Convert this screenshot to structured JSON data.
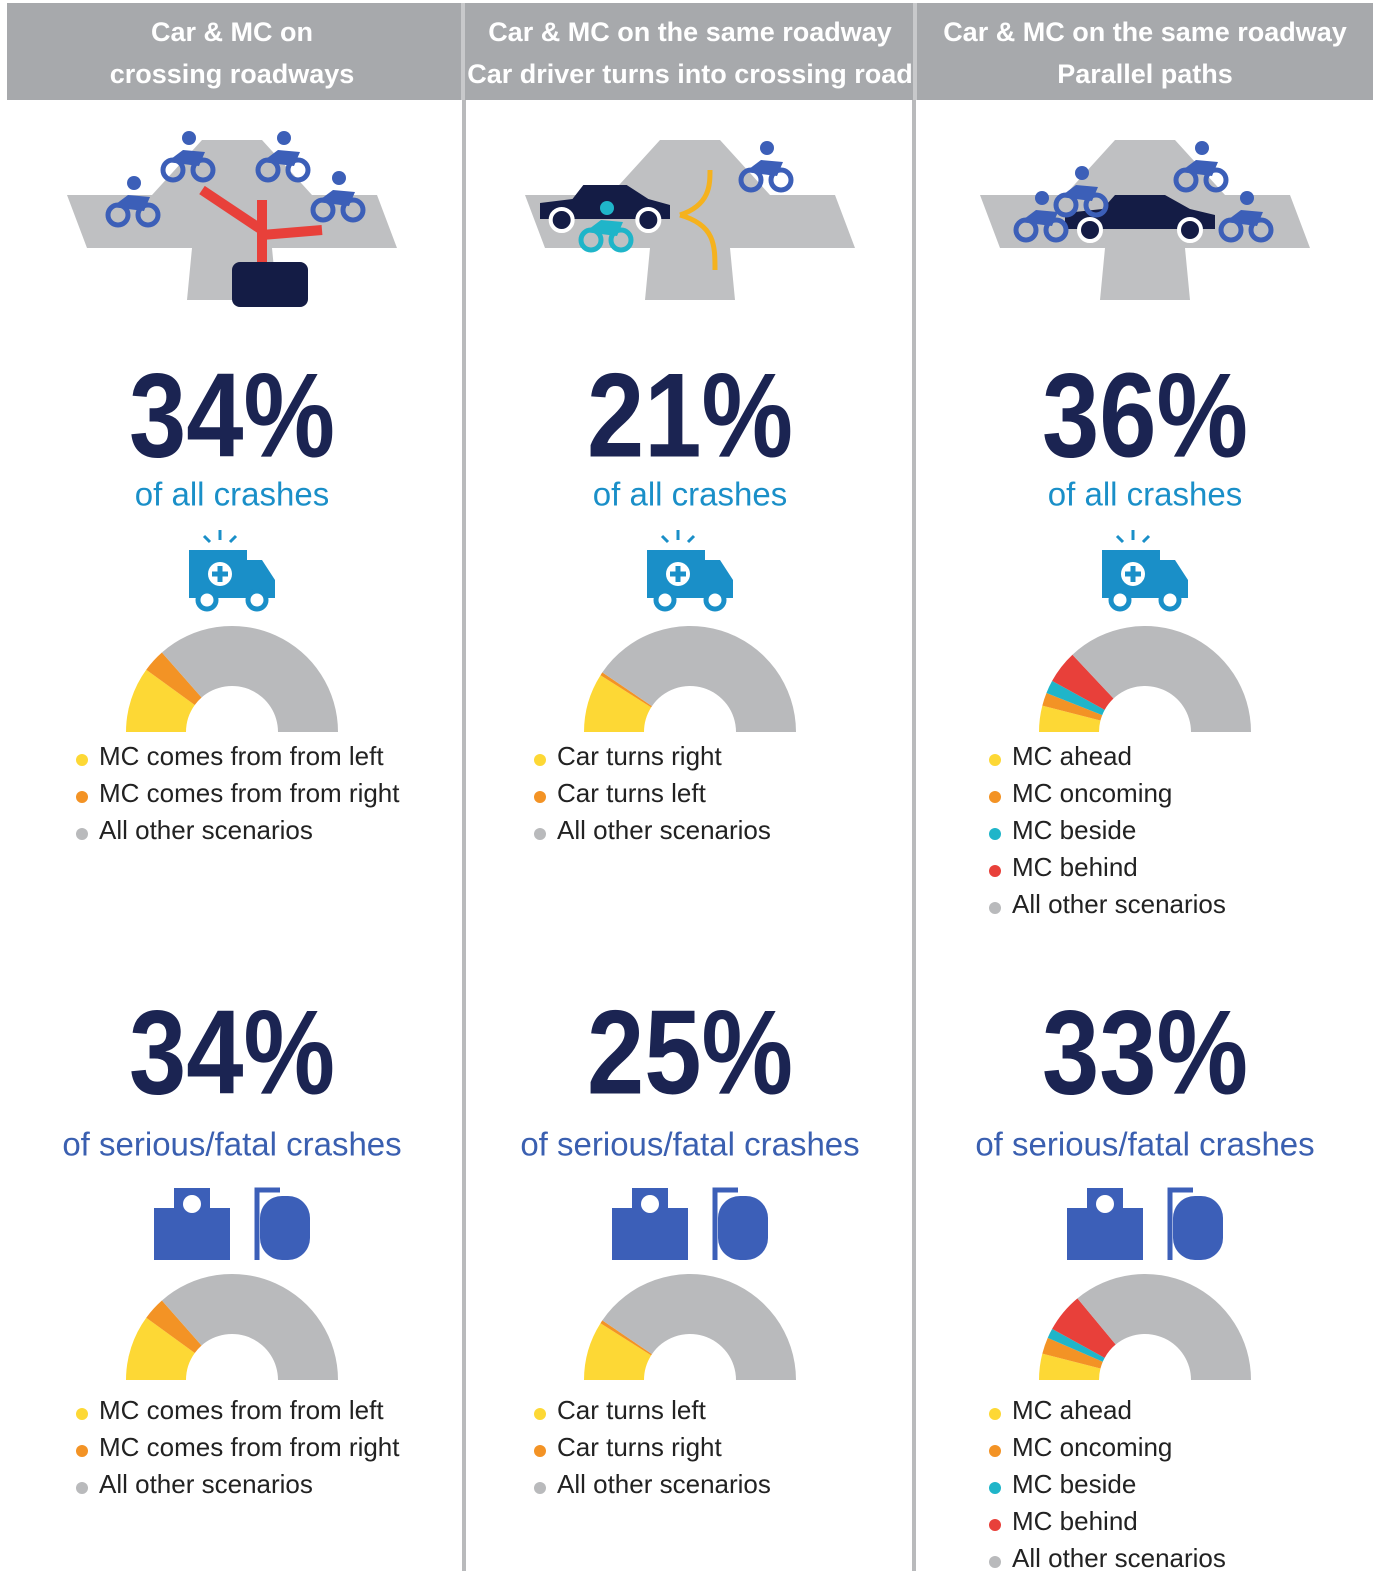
{
  "headers": [
    [
      "Car & MC on",
      "crossing roadways"
    ],
    [
      "Car & MC on the same roadway",
      "Car driver turns into crossing road"
    ],
    [
      "Car & MC on the same roadway",
      "Parallel paths"
    ]
  ],
  "chart_data": [
    {
      "type": "pie",
      "headline": "34%",
      "caption": "of all crashes",
      "categories": [
        "MC comes from from left",
        "MC comes from from right",
        "All other scenarios"
      ],
      "values": [
        20,
        7,
        73
      ],
      "colors": [
        "#fdd835",
        "#f39325",
        "#b9babc"
      ]
    },
    {
      "type": "pie",
      "headline": "21%",
      "caption": "of all crashes",
      "categories": [
        "Car turns right",
        "Car turns left",
        "All other scenarios"
      ],
      "values": [
        18,
        1,
        81
      ],
      "colors": [
        "#fdd835",
        "#f39325",
        "#b9babc"
      ]
    },
    {
      "type": "pie",
      "headline": "36%",
      "caption": "of all crashes",
      "categories": [
        "MC ahead",
        "MC oncoming",
        "MC beside",
        "MC behind",
        "All other scenarios"
      ],
      "values": [
        8,
        4,
        4,
        10,
        74
      ],
      "colors": [
        "#fdd835",
        "#f39325",
        "#1fb5c9",
        "#e8403a",
        "#b9babc"
      ]
    },
    {
      "type": "pie",
      "headline": "34%",
      "caption": "of serious/fatal crashes",
      "categories": [
        "MC comes from from left",
        "MC comes from from right",
        "All other scenarios"
      ],
      "values": [
        20,
        7,
        73
      ],
      "colors": [
        "#fdd835",
        "#f39325",
        "#b9babc"
      ]
    },
    {
      "type": "pie",
      "headline": "25%",
      "caption": "of serious/fatal crashes",
      "categories": [
        "Car turns left",
        "Car turns right",
        "All other scenarios"
      ],
      "values": [
        18,
        1,
        81
      ],
      "colors": [
        "#fdd835",
        "#f39325",
        "#b9babc"
      ]
    },
    {
      "type": "pie",
      "headline": "33%",
      "caption": "of serious/fatal crashes",
      "categories": [
        "MC ahead",
        "MC oncoming",
        "MC beside",
        "MC behind",
        "All other scenarios"
      ],
      "values": [
        8,
        5,
        3,
        12,
        72
      ],
      "colors": [
        "#fdd835",
        "#f39325",
        "#1fb5c9",
        "#e8403a",
        "#b9babc"
      ]
    }
  ]
}
